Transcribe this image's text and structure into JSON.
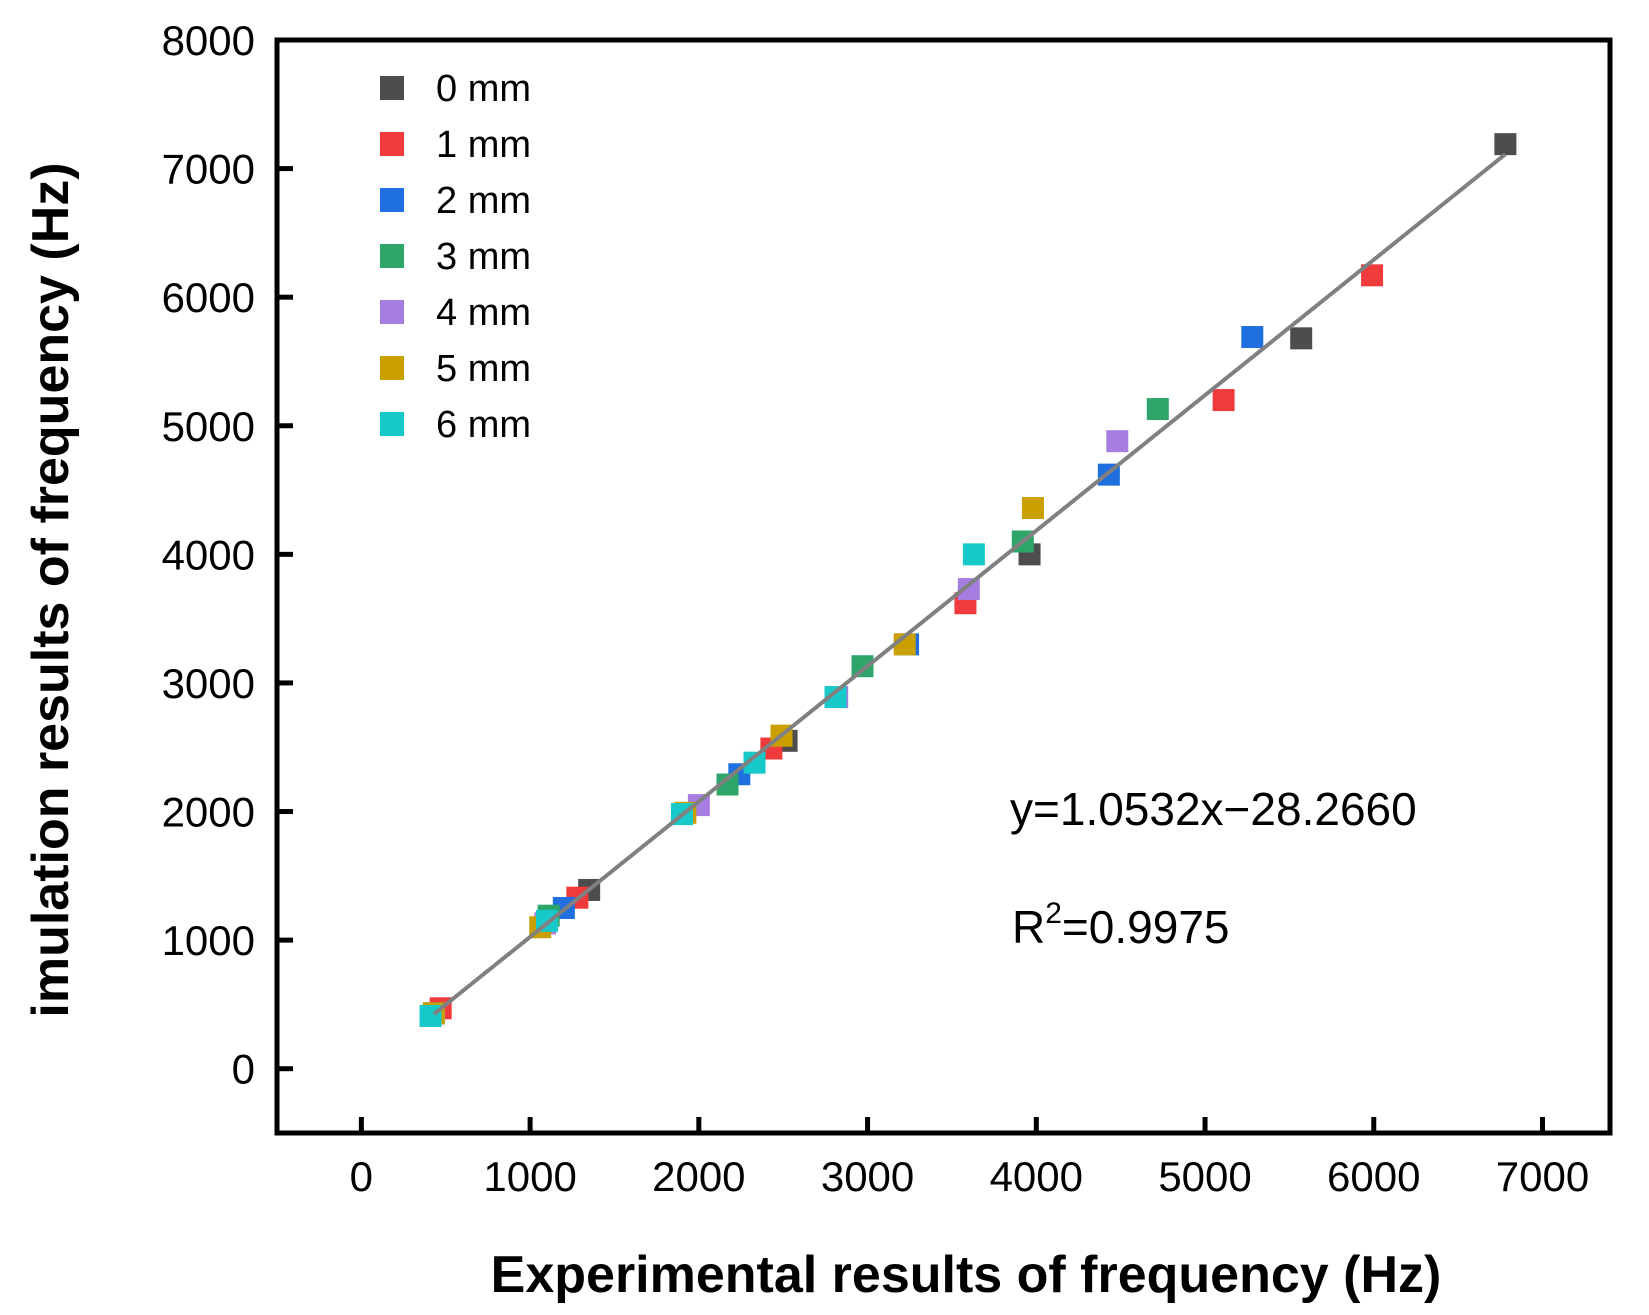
{
  "chart_data": {
    "type": "scatter",
    "title": "",
    "xlabel": "Experimental results of frequency (Hz)",
    "ylabel": "imulation results of frequency (Hz)",
    "xlim": [
      -500,
      7400
    ],
    "ylim": [
      -500,
      8000
    ],
    "xticks": [
      0,
      1000,
      2000,
      3000,
      4000,
      5000,
      6000,
      7000
    ],
    "yticks": [
      0,
      1000,
      2000,
      3000,
      4000,
      5000,
      6000,
      7000,
      8000
    ],
    "grid": false,
    "legend_position": "top-left",
    "series": [
      {
        "name": "0 mm",
        "color": "#4d4d4d",
        "points": [
          [
            430,
            430
          ],
          [
            1350,
            1390
          ],
          [
            2520,
            2550
          ],
          [
            3960,
            4000
          ],
          [
            5570,
            5680
          ],
          [
            6780,
            7190
          ]
        ]
      },
      {
        "name": "1 mm",
        "color": "#ef3b3b",
        "points": [
          [
            470,
            470
          ],
          [
            1280,
            1330
          ],
          [
            2430,
            2490
          ],
          [
            3580,
            3620
          ],
          [
            5110,
            5200
          ],
          [
            5990,
            6170
          ]
        ]
      },
      {
        "name": "2 mm",
        "color": "#1f6fde",
        "points": [
          [
            430,
            430
          ],
          [
            1200,
            1250
          ],
          [
            2240,
            2290
          ],
          [
            3240,
            3300
          ],
          [
            4430,
            4620
          ],
          [
            5280,
            5690
          ]
        ]
      },
      {
        "name": "3 mm",
        "color": "#2ea56a",
        "points": [
          [
            430,
            430
          ],
          [
            1110,
            1190
          ],
          [
            2170,
            2210
          ],
          [
            2970,
            3130
          ],
          [
            3920,
            4100
          ],
          [
            4720,
            5130
          ]
        ]
      },
      {
        "name": "4 mm",
        "color": "#a67de0",
        "points": [
          [
            430,
            430
          ],
          [
            1090,
            1130
          ],
          [
            2000,
            2050
          ],
          [
            2820,
            2890
          ],
          [
            3600,
            3730
          ],
          [
            4480,
            4880
          ]
        ]
      },
      {
        "name": "5 mm",
        "color": "#c9a000",
        "points": [
          [
            430,
            430
          ],
          [
            1060,
            1100
          ],
          [
            1920,
            1990
          ],
          [
            2490,
            2590
          ],
          [
            3220,
            3300
          ],
          [
            3980,
            4360
          ]
        ]
      },
      {
        "name": "6 mm",
        "color": "#17c9c9",
        "points": [
          [
            410,
            410
          ],
          [
            1100,
            1150
          ],
          [
            1900,
            1980
          ],
          [
            2330,
            2380
          ],
          [
            2810,
            2890
          ],
          [
            3630,
            4000
          ]
        ]
      }
    ],
    "fit_line": {
      "slope": 1.0532,
      "intercept": -28.266,
      "x_range": [
        430,
        6780
      ],
      "color": "#808080"
    },
    "annotations": {
      "equation": "y=1.0532x−28.2660",
      "r2_prefix": "R",
      "r2_sup": "2",
      "r2_value": "=0.9975"
    }
  }
}
